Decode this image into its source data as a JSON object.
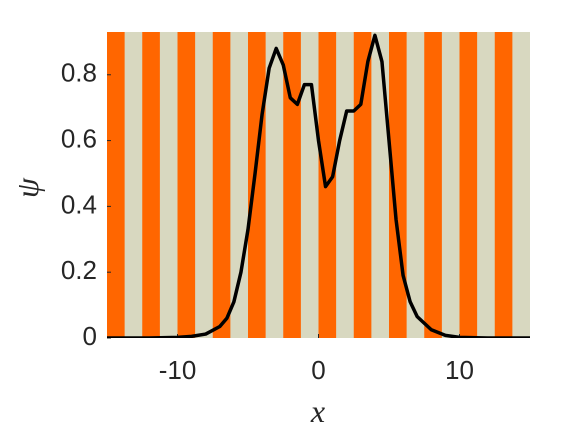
{
  "chart_data": {
    "type": "line",
    "xlabel": "x",
    "ylabel": "ψ",
    "x": [
      -15,
      -12,
      -10,
      -9,
      -8,
      -7,
      -6.5,
      -6,
      -5.5,
      -5,
      -4.5,
      -4,
      -3.5,
      -3,
      -2.5,
      -2,
      -1.5,
      -1,
      -0.5,
      0,
      0.5,
      1,
      1.5,
      2,
      2.5,
      3,
      3.5,
      4,
      4.5,
      5,
      5.5,
      6,
      6.5,
      7,
      8,
      9,
      10,
      12,
      15
    ],
    "values": [
      0,
      0,
      0.002,
      0.005,
      0.012,
      0.035,
      0.06,
      0.11,
      0.2,
      0.33,
      0.5,
      0.68,
      0.82,
      0.88,
      0.83,
      0.73,
      0.71,
      0.77,
      0.77,
      0.6,
      0.46,
      0.49,
      0.6,
      0.69,
      0.69,
      0.71,
      0.84,
      0.92,
      0.84,
      0.6,
      0.36,
      0.19,
      0.11,
      0.065,
      0.025,
      0.008,
      0.002,
      0,
      0
    ],
    "color": "#000000",
    "xlim": [
      -15,
      15
    ],
    "xticks": [
      -10,
      0,
      10
    ],
    "ylim": [
      0,
      0.93
    ],
    "yticks": [
      0,
      0.2,
      0.4,
      0.6,
      0.8
    ],
    "stripe_colors": [
      "#ff6600",
      "#d8d8c0"
    ],
    "stripe_period": 2.5
  }
}
